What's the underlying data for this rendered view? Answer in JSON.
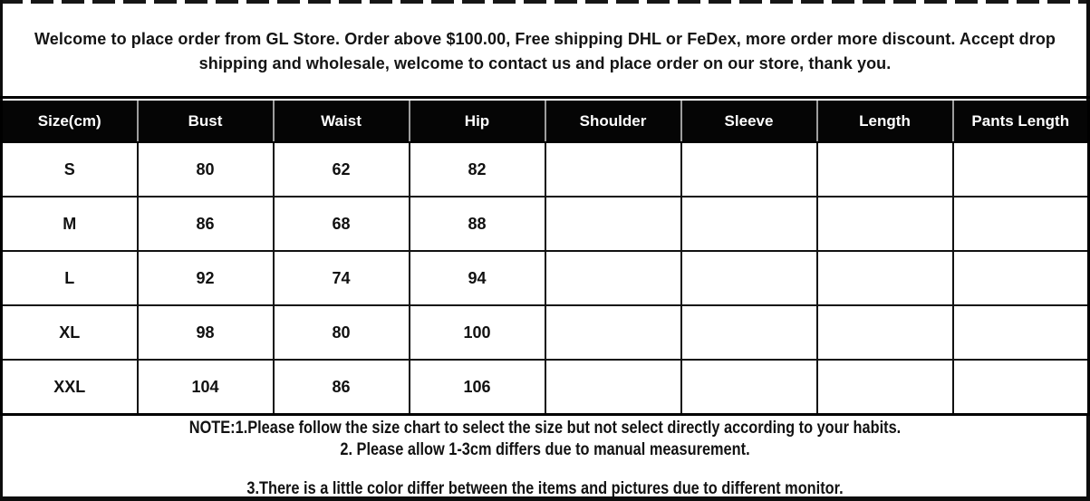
{
  "welcome": {
    "lines": [
      "Welcome to place order from GL Store. Order above $100.00, Free shipping DHL or FeDex, more order more discount. Accept drop",
      "shipping and wholesale, welcome to contact us and place order on our store, thank you."
    ]
  },
  "chart_data": {
    "type": "table",
    "columns": [
      "Size(cm)",
      "Bust",
      "Waist",
      "Hip",
      "Shoulder",
      "Sleeve",
      "Length",
      "Pants Length"
    ],
    "rows": [
      [
        "S",
        "80",
        "62",
        "82",
        "",
        "",
        "",
        ""
      ],
      [
        "M",
        "86",
        "68",
        "88",
        "",
        "",
        "",
        ""
      ],
      [
        "L",
        "92",
        "74",
        "94",
        "",
        "",
        "",
        ""
      ],
      [
        "XL",
        "98",
        "80",
        "100",
        "",
        "",
        "",
        ""
      ],
      [
        "XXL",
        "104",
        "86",
        "106",
        "",
        "",
        "",
        ""
      ]
    ]
  },
  "notes": {
    "lines": [
      "NOTE:1.Please follow the size chart to select the size but not select directly according to your habits.",
      "2. Please allow 1-3cm differs due to manual measurement.",
      "3.There is a little color differ between the items and pictures due to different monitor."
    ]
  },
  "colors": {
    "header_bg": "#050505",
    "header_text": "#ffffff",
    "body_text": "#111111",
    "border": "#000000",
    "background": "#ffffff",
    "header_divider": "#9d9d9d"
  }
}
